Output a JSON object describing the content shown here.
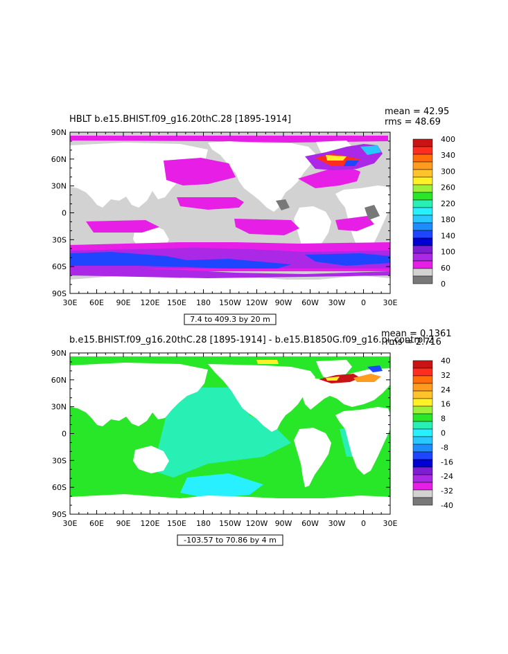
{
  "chart_data": [
    {
      "type": "heatmap",
      "title": "HBLT b.e15.BHIST.f09_g16.20thC.28 [1895-1914]",
      "stats": {
        "mean": "mean = 42.95",
        "rms": "rms = 48.69"
      },
      "range_label": "7.4 to 409.3 by 20 m",
      "x_ticks": [
        "30E",
        "60E",
        "90E",
        "120E",
        "150E",
        "180",
        "150W",
        "120W",
        "90W",
        "60W",
        "30W",
        "0",
        "30E"
      ],
      "y_ticks": [
        "90N",
        "60N",
        "30N",
        "0",
        "30S",
        "60S",
        "90S"
      ],
      "colorbar": {
        "labels": [
          "400",
          "340",
          "300",
          "260",
          "220",
          "180",
          "140",
          "100",
          "60",
          "0"
        ],
        "colors": [
          "#c81414",
          "#ff2d1e",
          "#ff6e0a",
          "#ff9b1e",
          "#ffc32d",
          "#fff028",
          "#9bf03c",
          "#28e628",
          "#28f0b4",
          "#28f0ff",
          "#28c8ff",
          "#1e8cff",
          "#1e46ff",
          "#0000d2",
          "#7d1ed2",
          "#aa28e6",
          "#e61ee6",
          "#d2d2d2",
          "#787878"
        ]
      }
    },
    {
      "type": "heatmap",
      "title": "b.e15.BHIST.f09_g16.20thC.28 [1895-1914] - b.e15.B1850G.f09_g16.pi_control.2",
      "stats": {
        "mean": "mean = 0.1361",
        "rms": "rms = 2.716"
      },
      "range_label": "-103.57 to 70.86 by 4 m",
      "x_ticks": [
        "30E",
        "60E",
        "90E",
        "120E",
        "150E",
        "180",
        "150W",
        "120W",
        "90W",
        "60W",
        "30W",
        "0",
        "30E"
      ],
      "y_ticks": [
        "90N",
        "60N",
        "30N",
        "0",
        "30S",
        "60S",
        "90S"
      ],
      "colorbar": {
        "labels": [
          "40",
          "32",
          "24",
          "16",
          "8",
          "0",
          "-8",
          "-16",
          "-24",
          "-32",
          "-40"
        ],
        "colors": [
          "#c81414",
          "#ff2d1e",
          "#ff6e0a",
          "#ff9b1e",
          "#ffc32d",
          "#fff028",
          "#9bf03c",
          "#28e628",
          "#28f0b4",
          "#28f0ff",
          "#28c8ff",
          "#1e8cff",
          "#1e46ff",
          "#0000d2",
          "#7d1ed2",
          "#aa28e6",
          "#e61ee6",
          "#d2d2d2",
          "#787878"
        ]
      }
    }
  ]
}
